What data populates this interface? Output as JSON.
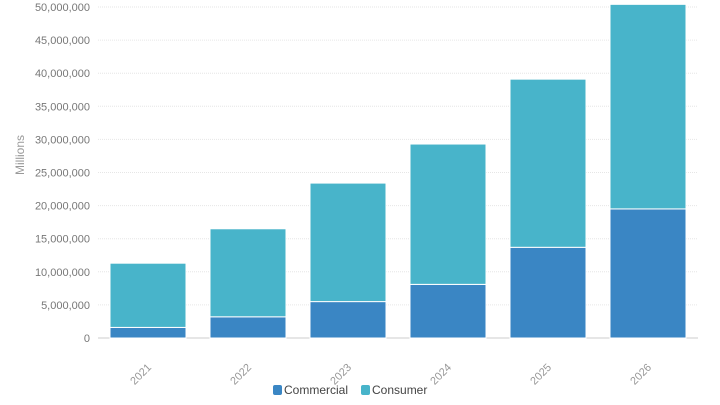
{
  "chart_data": {
    "type": "bar",
    "stacked": true,
    "categories": [
      "2021",
      "2022",
      "2023",
      "2024",
      "2025",
      "2026"
    ],
    "series": [
      {
        "name": "Commercial",
        "color": "#3a86c4",
        "values": [
          1600000,
          3200000,
          5500000,
          8100000,
          13700000,
          19500000
        ]
      },
      {
        "name": "Consumer",
        "color": "#48b4ca",
        "values": [
          9700000,
          13300000,
          17900000,
          21200000,
          25400000,
          30900000
        ]
      }
    ],
    "ylabel": "Millions",
    "ylim": [
      0,
      50000000
    ],
    "yticks": [
      0,
      5000000,
      10000000,
      15000000,
      20000000,
      25000000,
      30000000,
      35000000,
      40000000,
      45000000,
      50000000
    ],
    "ytick_labels": [
      "0",
      "5,000,000",
      "10,000,000",
      "15,000,000",
      "20,000,000",
      "25,000,000",
      "30,000,000",
      "35,000,000",
      "40,000,000",
      "45,000,000",
      "50,000,000"
    ],
    "grid": true,
    "legend_position": "bottom-center"
  }
}
